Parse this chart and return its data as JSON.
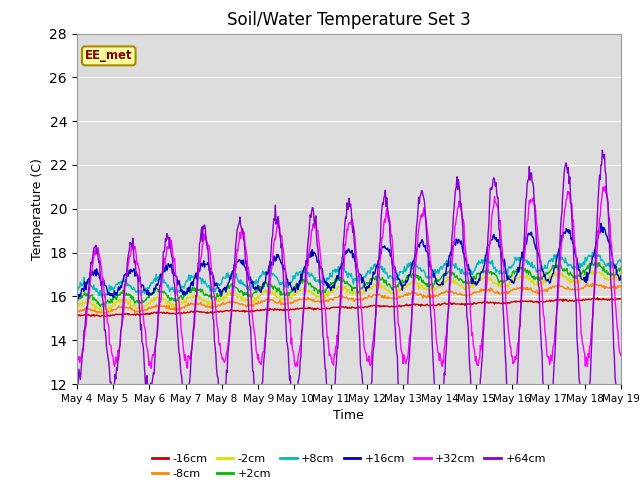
{
  "title": "Soil/Water Temperature Set 3",
  "xlabel": "Time",
  "ylabel": "Temperature (C)",
  "ylim": [
    12,
    28
  ],
  "yticks": [
    12,
    14,
    16,
    18,
    20,
    22,
    24,
    26,
    28
  ],
  "annotation": "EE_met",
  "bg_color": "#dcdcdc",
  "series_order": [
    "-16cm",
    "-8cm",
    "-2cm",
    "+2cm",
    "+8cm",
    "+16cm",
    "+32cm",
    "+64cm"
  ],
  "series": {
    "-16cm": {
      "color": "#cc0000",
      "linewidth": 1.0
    },
    "-8cm": {
      "color": "#ff8800",
      "linewidth": 1.0
    },
    "-2cm": {
      "color": "#dddd00",
      "linewidth": 1.0
    },
    "+2cm": {
      "color": "#00bb00",
      "linewidth": 1.0
    },
    "+8cm": {
      "color": "#00bbbb",
      "linewidth": 1.0
    },
    "+16cm": {
      "color": "#0000bb",
      "linewidth": 1.0
    },
    "+32cm": {
      "color": "#ff00ff",
      "linewidth": 1.0
    },
    "+64cm": {
      "color": "#8800cc",
      "linewidth": 1.0
    }
  },
  "x_start": 0,
  "x_end": 15,
  "x_ticks": [
    0,
    1,
    2,
    3,
    4,
    5,
    6,
    7,
    8,
    9,
    10,
    11,
    12,
    13,
    14,
    15
  ],
  "x_tick_labels": [
    "May 4",
    "May 5",
    "May 6",
    "May 7",
    "May 8",
    "May 9",
    "May 10",
    "May 11",
    "May 12",
    "May 13",
    "May 14",
    "May 15",
    "May 16",
    "May 17",
    "May 18",
    "May 19"
  ]
}
